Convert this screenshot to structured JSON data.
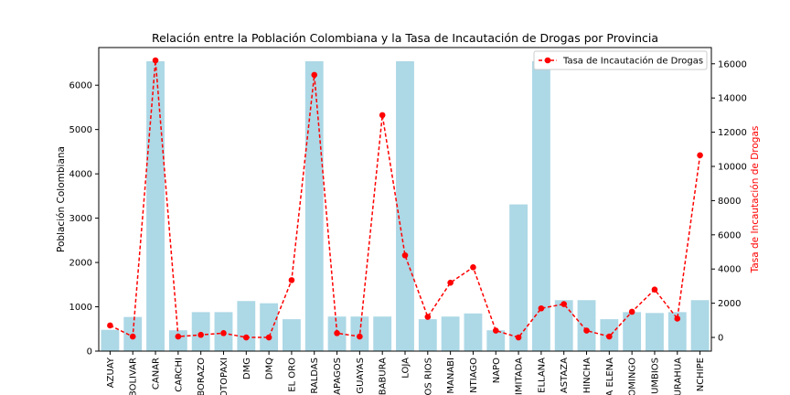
{
  "chart_data": {
    "type": "bar+line",
    "title": "Relación entre la Población Colombiana y la Tasa de Incautación de Drogas por Provincia",
    "xlabel": "",
    "categories": [
      "AZUAY",
      "BOLIVAR",
      "CANAR",
      "CARCHI",
      "CHIMBORAZO",
      "COTOPAXI",
      "DMG",
      "DMQ",
      "EL ORO",
      "ESMERALDAS",
      "GALAPAGOS",
      "GUAYAS",
      "IMBABURA",
      "LOJA",
      "LOS RIOS",
      "MANABI",
      "MORONA SANTIAGO",
      "NAPO",
      "PASTAZA LIMITADA",
      "ORELLANA",
      "PASTAZA",
      "PICHINCHA",
      "SANTA ELENA",
      "SANTO DOMINGO",
      "SUCUMBIOS",
      "TUNGURAHUA",
      "ZAMORA CHINCHIPE"
    ],
    "tick_labels": [
      "AZUAY",
      "BOLIVAR",
      "CANAR",
      "CARCHI",
      "BORAZO",
      "OTOPAXI",
      "DMG",
      "DMQ",
      "EL ORO",
      "RALDAS",
      "APAGOS",
      "GUAYAS",
      "BABURA",
      "LOJA",
      "OS RIOS",
      "MANABI",
      "NTIAGO",
      "NAPO",
      "IMITADA",
      "ELLANA",
      "ASTAZA",
      "HINCHA",
      "A ELENA",
      "OMINGO",
      "UMBIOS",
      "URAHUA",
      "NCHIPE"
    ],
    "left_axis": {
      "label": "Población Colombiana",
      "ylim": [
        0,
        6850
      ],
      "ticks": [
        0,
        1000,
        2000,
        3000,
        4000,
        5000,
        6000
      ],
      "color": "#000000"
    },
    "right_axis": {
      "label": "Tasa de Incautación de Drogas",
      "ylim": [
        -800,
        16950
      ],
      "ticks": [
        0,
        2000,
        4000,
        6000,
        8000,
        10000,
        12000,
        14000,
        16000
      ],
      "color": "#ff0000"
    },
    "bar_series": {
      "name": "Población Colombiana",
      "color": "#add8e6",
      "values": [
        480,
        770,
        6540,
        470,
        880,
        880,
        1130,
        1080,
        720,
        6540,
        780,
        780,
        780,
        6540,
        720,
        780,
        850,
        470,
        3310,
        6540,
        1150,
        1150,
        720,
        880,
        860,
        880,
        1150
      ]
    },
    "line_series": {
      "name": "Tasa de Incautación de Drogas",
      "color": "#ff0000",
      "style": "dashed",
      "marker": "circle",
      "values": [
        700,
        50,
        16200,
        50,
        150,
        250,
        0,
        0,
        3350,
        15350,
        250,
        50,
        13000,
        4800,
        1200,
        3200,
        4100,
        400,
        0,
        1700,
        1950,
        400,
        50,
        1500,
        2800,
        1100,
        10650
      ]
    },
    "legend": {
      "position": "top-right"
    },
    "grid": false
  }
}
